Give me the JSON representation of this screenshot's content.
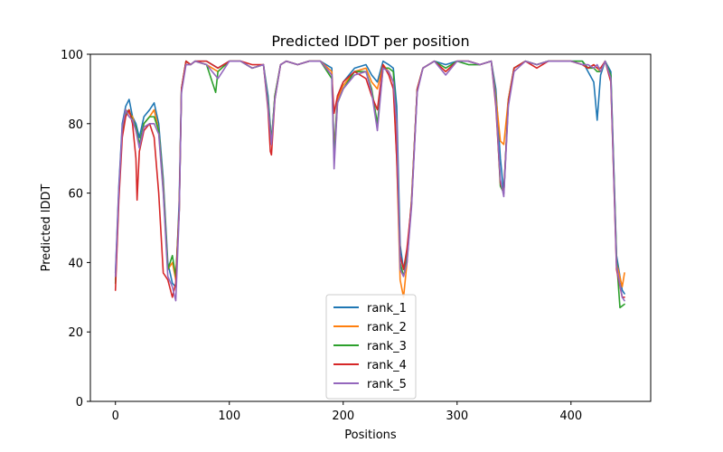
{
  "chart_data": {
    "type": "line",
    "title": "Predicted lDDT per position",
    "xlabel": "Positions",
    "ylabel": "Predicted lDDT",
    "xlim": [
      -22,
      470
    ],
    "ylim": [
      0,
      100
    ],
    "xticks": [
      0,
      100,
      200,
      300,
      400
    ],
    "yticks": [
      0,
      20,
      40,
      60,
      80,
      100
    ],
    "legend_location": "lower-center",
    "series": [
      {
        "name": "rank_1",
        "color": "#1f77b4",
        "x": [
          0,
          3,
          6,
          9,
          12,
          15,
          18,
          21,
          25,
          30,
          34,
          38,
          42,
          46,
          50,
          53,
          56,
          58,
          62,
          66,
          70,
          80,
          90,
          100,
          110,
          120,
          130,
          134,
          137,
          140,
          145,
          150,
          160,
          170,
          180,
          190,
          192,
          195,
          200,
          210,
          220,
          225,
          230,
          235,
          240,
          244,
          247,
          250,
          253,
          256,
          260,
          265,
          270,
          280,
          290,
          300,
          310,
          320,
          330,
          334,
          338,
          341,
          345,
          350,
          360,
          370,
          380,
          390,
          400,
          410,
          415,
          420,
          423,
          426,
          430,
          435,
          440,
          445,
          447
        ],
        "y": [
          37,
          62,
          80,
          85,
          87,
          82,
          80,
          76,
          82,
          84,
          86,
          80,
          64,
          40,
          34,
          33,
          58,
          90,
          98,
          97,
          98,
          98,
          96,
          98,
          98,
          96,
          97,
          88,
          75,
          88,
          97,
          98,
          97,
          98,
          98,
          96,
          72,
          88,
          92,
          96,
          97,
          94,
          92,
          98,
          97,
          96,
          85,
          45,
          38,
          42,
          58,
          90,
          96,
          98,
          97,
          98,
          98,
          97,
          98,
          90,
          70,
          60,
          87,
          96,
          98,
          97,
          98,
          98,
          98,
          98,
          95,
          92,
          81,
          94,
          98,
          95,
          42,
          32,
          31
        ]
      },
      {
        "name": "rank_2",
        "color": "#ff7f0e",
        "x": [
          0,
          3,
          6,
          9,
          12,
          15,
          18,
          21,
          25,
          30,
          34,
          38,
          42,
          46,
          50,
          53,
          56,
          58,
          62,
          66,
          70,
          80,
          90,
          100,
          110,
          120,
          130,
          134,
          137,
          140,
          145,
          150,
          160,
          170,
          180,
          190,
          192,
          195,
          200,
          210,
          220,
          225,
          230,
          235,
          240,
          244,
          247,
          250,
          253,
          256,
          260,
          265,
          270,
          280,
          290,
          300,
          310,
          320,
          330,
          334,
          338,
          341,
          345,
          350,
          360,
          370,
          380,
          390,
          400,
          410,
          415,
          420,
          423,
          426,
          430,
          435,
          440,
          445,
          447
        ],
        "y": [
          35,
          60,
          78,
          84,
          83,
          82,
          78,
          74,
          80,
          82,
          84,
          78,
          62,
          38,
          40,
          35,
          55,
          90,
          98,
          97,
          98,
          97,
          95,
          98,
          98,
          96,
          97,
          86,
          74,
          88,
          97,
          98,
          97,
          98,
          98,
          95,
          71,
          87,
          91,
          95,
          96,
          92,
          90,
          97,
          95,
          92,
          70,
          35,
          30,
          40,
          58,
          90,
          96,
          98,
          95,
          98,
          98,
          97,
          98,
          88,
          75,
          74,
          87,
          96,
          98,
          97,
          98,
          98,
          98,
          97,
          96,
          97,
          96,
          95,
          98,
          93,
          40,
          33,
          37
        ]
      },
      {
        "name": "rank_3",
        "color": "#2ca02c",
        "x": [
          0,
          3,
          6,
          9,
          12,
          15,
          18,
          21,
          25,
          30,
          34,
          38,
          42,
          46,
          50,
          53,
          56,
          58,
          62,
          66,
          70,
          80,
          88,
          90,
          100,
          110,
          120,
          130,
          134,
          137,
          140,
          145,
          150,
          160,
          170,
          180,
          190,
          192,
          195,
          200,
          210,
          220,
          225,
          230,
          235,
          240,
          244,
          247,
          250,
          253,
          256,
          260,
          265,
          270,
          280,
          290,
          300,
          310,
          320,
          330,
          334,
          338,
          341,
          345,
          350,
          360,
          370,
          380,
          390,
          400,
          410,
          415,
          420,
          423,
          426,
          430,
          435,
          440,
          443,
          447
        ],
        "y": [
          34,
          60,
          78,
          83,
          84,
          81,
          79,
          74,
          80,
          82,
          82,
          78,
          61,
          38,
          42,
          36,
          55,
          90,
          98,
          97,
          98,
          97,
          89,
          95,
          98,
          98,
          96,
          97,
          86,
          75,
          88,
          97,
          98,
          97,
          98,
          98,
          93,
          70,
          86,
          90,
          95,
          95,
          90,
          80,
          96,
          96,
          95,
          80,
          40,
          36,
          41,
          57,
          90,
          96,
          98,
          96,
          98,
          97,
          97,
          98,
          87,
          62,
          60,
          86,
          96,
          98,
          97,
          98,
          98,
          98,
          98,
          96,
          96,
          95,
          95,
          98,
          94,
          41,
          27,
          28
        ]
      },
      {
        "name": "rank_4",
        "color": "#d62728",
        "x": [
          0,
          3,
          6,
          9,
          12,
          15,
          18,
          19,
          21,
          25,
          30,
          34,
          38,
          42,
          46,
          50,
          53,
          56,
          58,
          62,
          66,
          70,
          80,
          90,
          100,
          110,
          120,
          130,
          134,
          136,
          137,
          140,
          145,
          150,
          160,
          170,
          180,
          190,
          192,
          195,
          200,
          210,
          220,
          225,
          230,
          235,
          240,
          244,
          247,
          250,
          253,
          256,
          260,
          265,
          270,
          280,
          290,
          300,
          310,
          320,
          330,
          334,
          338,
          341,
          345,
          350,
          360,
          370,
          380,
          390,
          400,
          410,
          415,
          420,
          423,
          426,
          430,
          435,
          440,
          445,
          447
        ],
        "y": [
          32,
          58,
          76,
          82,
          84,
          80,
          70,
          58,
          72,
          78,
          80,
          76,
          60,
          37,
          35,
          30,
          34,
          55,
          90,
          98,
          97,
          98,
          98,
          96,
          98,
          98,
          97,
          97,
          84,
          72,
          71,
          87,
          97,
          98,
          97,
          98,
          98,
          94,
          83,
          88,
          92,
          95,
          93,
          88,
          84,
          97,
          94,
          90,
          70,
          42,
          38,
          44,
          57,
          90,
          96,
          98,
          95,
          98,
          98,
          97,
          98,
          85,
          63,
          60,
          86,
          96,
          98,
          96,
          98,
          98,
          98,
          97,
          96,
          97,
          96,
          96,
          98,
          92,
          38,
          30,
          30
        ]
      },
      {
        "name": "rank_5",
        "color": "#9467bd",
        "x": [
          0,
          3,
          6,
          9,
          12,
          15,
          18,
          21,
          25,
          30,
          34,
          38,
          42,
          46,
          50,
          53,
          56,
          58,
          62,
          66,
          70,
          80,
          90,
          100,
          110,
          120,
          130,
          134,
          137,
          140,
          145,
          150,
          160,
          170,
          180,
          190,
          192,
          195,
          200,
          210,
          220,
          225,
          230,
          235,
          240,
          244,
          247,
          250,
          253,
          256,
          260,
          265,
          270,
          280,
          290,
          300,
          310,
          320,
          330,
          334,
          338,
          341,
          345,
          350,
          360,
          370,
          380,
          390,
          400,
          410,
          415,
          420,
          423,
          426,
          430,
          435,
          440,
          445,
          447
        ],
        "y": [
          36,
          61,
          79,
          84,
          82,
          81,
          78,
          73,
          79,
          80,
          80,
          77,
          60,
          36,
          33,
          29,
          54,
          89,
          97,
          97,
          98,
          97,
          93,
          98,
          98,
          96,
          97,
          85,
          74,
          87,
          97,
          98,
          97,
          98,
          98,
          94,
          67,
          86,
          90,
          94,
          95,
          89,
          78,
          96,
          95,
          92,
          80,
          38,
          36,
          40,
          56,
          89,
          96,
          98,
          94,
          98,
          98,
          97,
          98,
          86,
          64,
          59,
          85,
          95,
          98,
          97,
          98,
          98,
          98,
          97,
          97,
          96,
          97,
          95,
          98,
          93,
          39,
          30,
          29
        ]
      }
    ]
  }
}
